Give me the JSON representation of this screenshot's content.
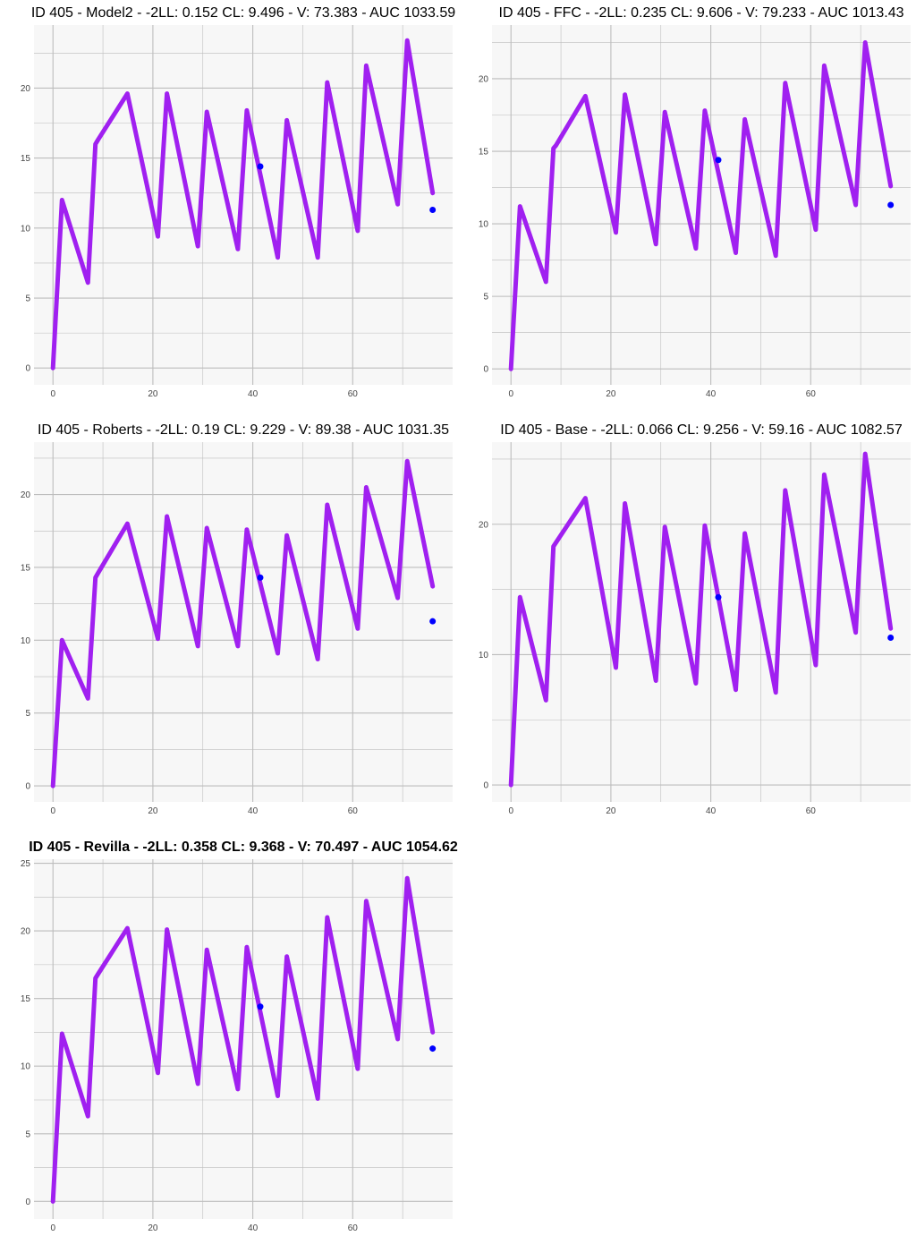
{
  "colors": {
    "background": "#ffffff",
    "panel": "#f7f7f7",
    "grid": "#bdbdbd",
    "line": "#a020f0",
    "point": "#0000ff"
  },
  "chart_data": [
    {
      "type": "line",
      "title": "ID 405 - Model2 - -2LL: 0.152 CL: 9.496 - V: 73.383 - AUC 1033.59",
      "title_bold": false,
      "xlabel": "",
      "ylabel": "",
      "xlim": [
        -3.8,
        80
      ],
      "ylim": [
        -1.2,
        24.5
      ],
      "xticks": [
        0,
        20,
        40,
        60
      ],
      "yticks": [
        0,
        5,
        10,
        15,
        20
      ],
      "grid": true,
      "series": [
        {
          "x": [
            0,
            1.8,
            7,
            8.5,
            9,
            14.9,
            21,
            22.8,
            29,
            30.8,
            37,
            38.8,
            45,
            46.8,
            53,
            54.9,
            61,
            62.7,
            69,
            70.9,
            76
          ],
          "y": [
            0,
            12,
            6.1,
            16,
            16.3,
            19.6,
            9.4,
            19.6,
            8.7,
            18.3,
            8.5,
            18.4,
            7.9,
            17.7,
            7.9,
            20.4,
            9.8,
            21.6,
            11.7,
            23.4,
            12.5
          ]
        }
      ],
      "points": {
        "x": [
          41.5,
          76
        ],
        "y": [
          14.4,
          11.3
        ]
      }
    },
    {
      "type": "line",
      "title": "ID 405 - FFC - -2LL: 0.235 CL: 9.606 - V: 79.233 - AUC 1013.43",
      "title_bold": false,
      "xlabel": "",
      "ylabel": "",
      "xlim": [
        -3.8,
        80
      ],
      "ylim": [
        -1.1,
        23.7
      ],
      "xticks": [
        0,
        20,
        40,
        60
      ],
      "yticks": [
        0,
        5,
        10,
        15,
        20
      ],
      "grid": true,
      "series": [
        {
          "x": [
            0,
            1.8,
            7,
            8.5,
            9,
            14.9,
            21,
            22.8,
            29,
            30.8,
            37,
            38.8,
            45,
            46.8,
            53,
            54.9,
            61,
            62.7,
            69,
            70.9,
            76
          ],
          "y": [
            0,
            11.2,
            6,
            15.2,
            15.4,
            18.8,
            9.4,
            18.9,
            8.6,
            17.7,
            8.3,
            17.8,
            8,
            17.2,
            7.8,
            19.7,
            9.6,
            20.9,
            11.3,
            22.5,
            12.6
          ]
        }
      ],
      "points": {
        "x": [
          41.5,
          76
        ],
        "y": [
          14.4,
          11.3
        ]
      }
    },
    {
      "type": "line",
      "title": "ID 405 - Roberts - -2LL: 0.19 CL: 9.229 - V: 89.38 - AUC 1031.35",
      "title_bold": false,
      "xlabel": "",
      "ylabel": "",
      "xlim": [
        -3.8,
        80
      ],
      "ylim": [
        -1.1,
        23.6
      ],
      "xticks": [
        0,
        20,
        40,
        60
      ],
      "yticks": [
        0,
        5,
        10,
        15,
        20
      ],
      "grid": true,
      "series": [
        {
          "x": [
            0,
            1.8,
            7,
            8.5,
            9,
            14.9,
            21,
            22.8,
            29,
            30.8,
            37,
            38.8,
            45,
            46.8,
            53,
            54.9,
            61,
            62.7,
            69,
            70.9,
            76
          ],
          "y": [
            0,
            10,
            6,
            14.3,
            14.6,
            18,
            10.1,
            18.5,
            9.6,
            17.7,
            9.6,
            17.6,
            9.1,
            17.2,
            8.7,
            19.3,
            10.8,
            20.5,
            12.9,
            22.3,
            13.7
          ]
        }
      ],
      "points": {
        "x": [
          41.5,
          76
        ],
        "y": [
          14.3,
          11.3
        ]
      }
    },
    {
      "type": "line",
      "title": "ID 405 - Base - -2LL: 0.066 CL: 9.256 - V: 59.16 - AUC 1082.57",
      "title_bold": false,
      "xlabel": "",
      "ylabel": "",
      "xlim": [
        -3.8,
        80
      ],
      "ylim": [
        -1.3,
        26.3
      ],
      "xticks": [
        0,
        20,
        40,
        60
      ],
      "yticks": [
        0,
        10,
        20
      ],
      "grid": true,
      "series": [
        {
          "x": [
            0,
            1.8,
            7,
            8.5,
            9,
            14.9,
            21,
            22.8,
            29,
            30.8,
            37,
            38.8,
            45,
            46.8,
            53,
            54.9,
            61,
            62.7,
            69,
            70.9,
            76
          ],
          "y": [
            0,
            14.4,
            6.5,
            18.3,
            18.6,
            22,
            9,
            21.6,
            8,
            19.8,
            7.8,
            19.9,
            7.3,
            19.3,
            7.1,
            22.6,
            9.2,
            23.8,
            11.7,
            25.4,
            12
          ]
        }
      ],
      "points": {
        "x": [
          41.5,
          76
        ],
        "y": [
          14.4,
          11.3
        ]
      }
    },
    {
      "type": "line",
      "title": "ID 405 - Revilla - -2LL: 0.358 CL: 9.368 - V: 70.497 - AUC 1054.62",
      "title_bold": true,
      "xlabel": "",
      "ylabel": "",
      "xlim": [
        -3.8,
        80
      ],
      "ylim": [
        -1.3,
        25.3
      ],
      "xticks": [
        0,
        20,
        40,
        60
      ],
      "yticks": [
        0,
        5,
        10,
        15,
        20,
        25
      ],
      "grid": true,
      "series": [
        {
          "x": [
            0,
            1.8,
            7,
            8.5,
            9,
            14.9,
            21,
            22.8,
            29,
            30.8,
            37,
            38.8,
            45,
            46.8,
            53,
            54.9,
            61,
            62.7,
            69,
            70.9,
            76
          ],
          "y": [
            0,
            12.4,
            6.3,
            16.5,
            16.8,
            20.2,
            9.5,
            20.1,
            8.7,
            18.6,
            8.3,
            18.8,
            7.8,
            18.1,
            7.6,
            21,
            9.8,
            22.2,
            12,
            23.9,
            12.5
          ]
        }
      ],
      "points": {
        "x": [
          41.5,
          76
        ],
        "y": [
          14.4,
          11.3
        ]
      }
    }
  ]
}
